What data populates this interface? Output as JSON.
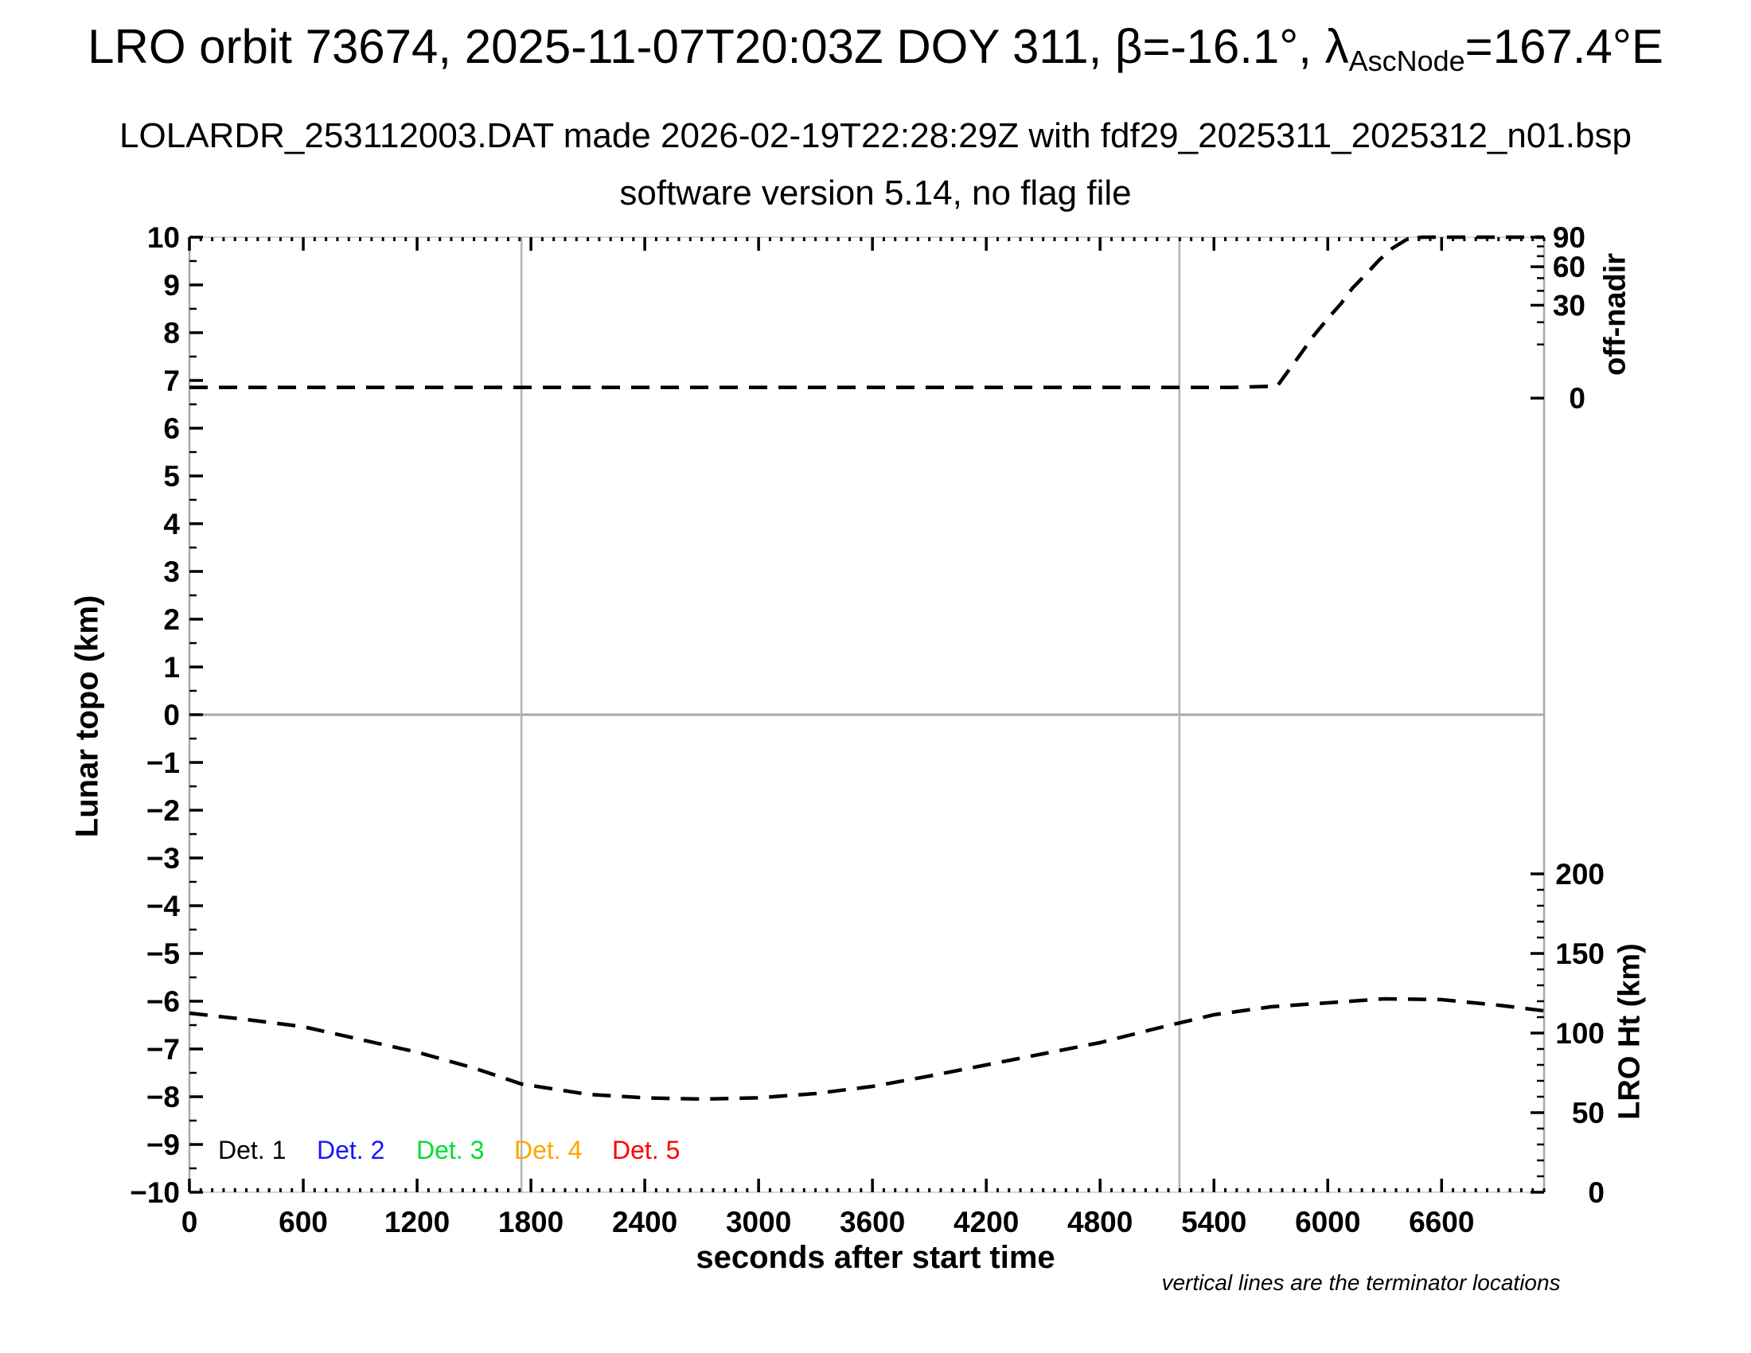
{
  "header": {
    "title_prefix": "LRO orbit 73674, 2025-11-07T20:03Z DOY 311, β=-16.1°, λ",
    "title_subscript": "AscNode",
    "title_suffix": "=167.4°E",
    "subtitle1": "LOLARDR_253112003.DAT made 2026-02-19T22:28:29Z with fdf29_2025311_2025312_n01.bsp",
    "subtitle2": "software version 5.14, no flag file"
  },
  "footnote": "vertical lines are the terminator locations",
  "colors": {
    "axis_gray": "#a9a9a9",
    "tick_black": "#000000",
    "curve_black": "#000000",
    "det1": "#000000",
    "det2": "#1515ff",
    "det3": "#00dd33",
    "det4": "#ffa500",
    "det5": "#ff0000"
  },
  "chart_data": {
    "type": "line",
    "title": "LRO orbit 73674, 2025-11-07T20:03Z DOY 311, β=-16.1°, λAscNode=167.4°E",
    "xlabel": "seconds after start time",
    "ylabel_left": "Lunar topo (km)",
    "x_range": [
      0,
      7140
    ],
    "x_major_ticks": [
      0,
      600,
      1200,
      1800,
      2400,
      3000,
      3600,
      4200,
      4800,
      5400,
      6000,
      6600
    ],
    "x_minor_step": 60,
    "y_left_range": [
      -10,
      10
    ],
    "y_left_major_step": 1,
    "y_left_minor_step": 0.5,
    "grid": {
      "zero_line": true,
      "vertical_terminator_lines": true
    },
    "terminator_lines_s": [
      1750,
      5218
    ],
    "right_axis_offnadir": {
      "label": "off-nadir",
      "ticks_deg": [
        0,
        30,
        60,
        90
      ],
      "minor_step_deg": 10,
      "mapping": {
        "topo_at_0deg": 6.63,
        "topo_span": 3.37,
        "law": "topo = topo_at_0deg + topo_span*sqrt(deg/90)"
      }
    },
    "right_axis_lro_ht": {
      "label": "LRO Ht (km)",
      "ticks_km": [
        0,
        50,
        100,
        150,
        200
      ],
      "minor_step_km": 10,
      "mapping": {
        "topo_at_0km": -10,
        "km_per_topo_unit": 30,
        "law": "topo = km/km_per_topo_unit + topo_at_0km"
      }
    },
    "series": [
      {
        "name": "spacecraft off-nadir angle",
        "axis": "offnadir_deg",
        "style": "dashed",
        "color": "#000000",
        "points": [
          [
            0,
            0.4
          ],
          [
            400,
            0.4
          ],
          [
            800,
            0.4
          ],
          [
            1200,
            0.4
          ],
          [
            1600,
            0.4
          ],
          [
            2000,
            0.4
          ],
          [
            2400,
            0.4
          ],
          [
            2800,
            0.4
          ],
          [
            3200,
            0.4
          ],
          [
            3600,
            0.4
          ],
          [
            4000,
            0.4
          ],
          [
            4400,
            0.4
          ],
          [
            4800,
            0.4
          ],
          [
            5200,
            0.4
          ],
          [
            5500,
            0.4
          ],
          [
            5734,
            0.5
          ],
          [
            5800,
            3
          ],
          [
            5860,
            7
          ],
          [
            5920,
            13
          ],
          [
            6000,
            22
          ],
          [
            6070,
            31
          ],
          [
            6130,
            42
          ],
          [
            6200,
            53
          ],
          [
            6270,
            66
          ],
          [
            6340,
            78
          ],
          [
            6420,
            88
          ],
          [
            6500,
            90
          ],
          [
            6700,
            90
          ],
          [
            6900,
            90
          ],
          [
            7139,
            90
          ]
        ]
      },
      {
        "name": "LRO height above surface",
        "axis": "lro_ht_km",
        "style": "dashed",
        "color": "#000000",
        "points": [
          [
            0,
            112.5
          ],
          [
            300,
            108.5
          ],
          [
            600,
            104
          ],
          [
            900,
            96
          ],
          [
            1200,
            88
          ],
          [
            1500,
            78
          ],
          [
            1750,
            68
          ],
          [
            2100,
            61.5
          ],
          [
            2400,
            59.3
          ],
          [
            2700,
            58.5
          ],
          [
            3000,
            59.3
          ],
          [
            3300,
            62
          ],
          [
            3600,
            66.5
          ],
          [
            3900,
            73
          ],
          [
            4200,
            80
          ],
          [
            4500,
            87
          ],
          [
            4800,
            94
          ],
          [
            5100,
            103
          ],
          [
            5400,
            111.5
          ],
          [
            5700,
            116.5
          ],
          [
            6000,
            119
          ],
          [
            6300,
            121.5
          ],
          [
            6600,
            121
          ],
          [
            6900,
            117.5
          ],
          [
            7139,
            114
          ]
        ]
      }
    ],
    "legend": {
      "position": "bottom-left-inside",
      "items": [
        {
          "label": "Det. 1",
          "color": "#000000"
        },
        {
          "label": "Det. 2",
          "color": "#1515ff"
        },
        {
          "label": "Det. 3",
          "color": "#00dd33"
        },
        {
          "label": "Det. 4",
          "color": "#ffa500"
        },
        {
          "label": "Det. 5",
          "color": "#ff0000"
        }
      ]
    }
  }
}
